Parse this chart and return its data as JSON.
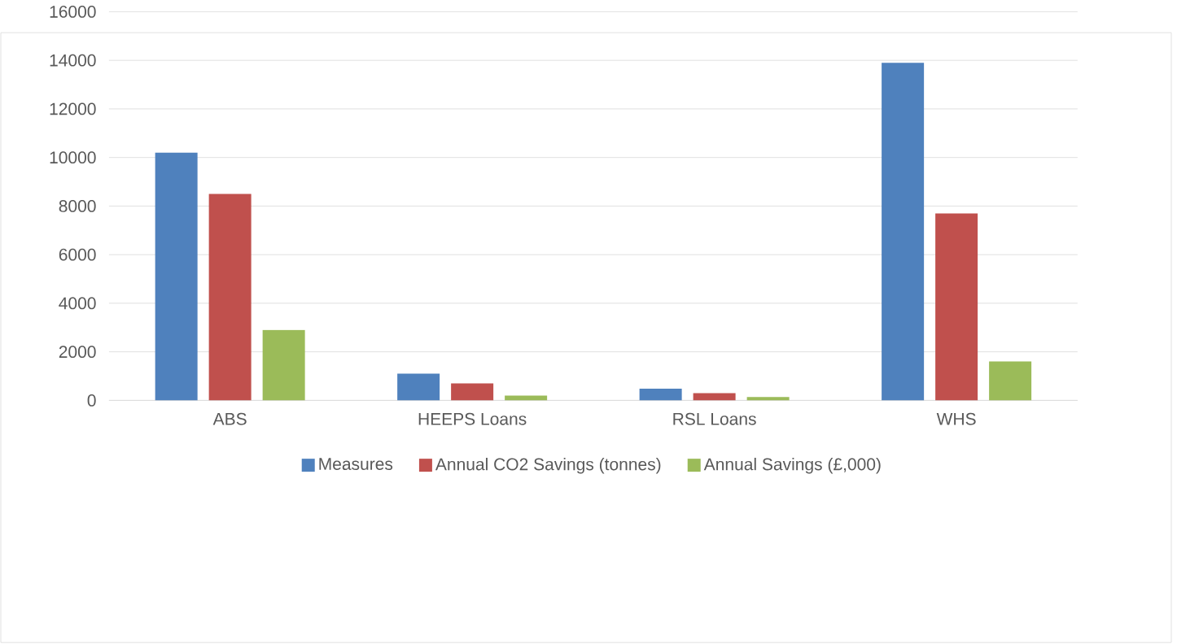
{
  "chart_data": {
    "type": "bar",
    "categories": [
      "ABS",
      "HEEPS Loans",
      "RSL Loans",
      "WHS"
    ],
    "series": [
      {
        "name": "Measures",
        "color": "#4f81bd",
        "values": [
          10200,
          1100,
          480,
          13900
        ]
      },
      {
        "name": "Annual CO2 Savings (tonnes)",
        "color": "#c0504d",
        "values": [
          8500,
          700,
          300,
          7700
        ]
      },
      {
        "name": "Annual Savings (£,000)",
        "color": "#9bbb59",
        "values": [
          2900,
          200,
          140,
          1600
        ]
      }
    ],
    "ylim": [
      0,
      16000
    ],
    "yticks": [
      0,
      2000,
      4000,
      6000,
      8000,
      10000,
      12000,
      14000,
      16000
    ],
    "grid": "y",
    "legend": "bottom"
  }
}
